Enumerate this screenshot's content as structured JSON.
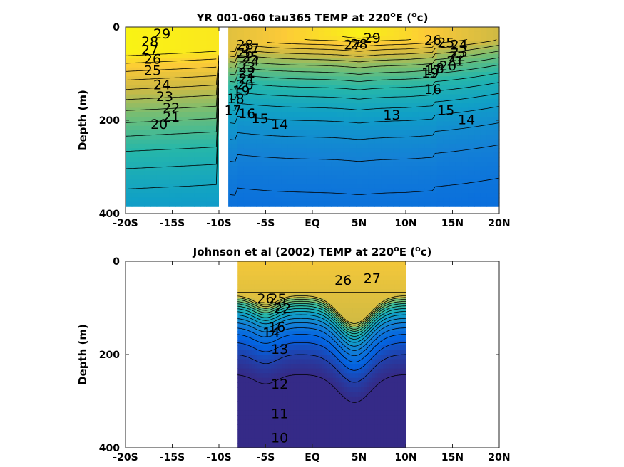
{
  "chart_data": [
    {
      "type": "contour",
      "title": "YR 001-060 tau365 TEMP at 220°E (°c)",
      "title_main": "YR 001-060 tau365 TEMP at 220",
      "title_unit_open": "E (",
      "title_unit_close": "c)",
      "title_sup": "o",
      "xlabel": "",
      "ylabel": "Depth (m)",
      "xlim": [
        -20,
        20
      ],
      "ylim": [
        400,
        0
      ],
      "x_ticks": [
        -20,
        -15,
        -10,
        -5,
        0,
        5,
        10,
        15,
        20
      ],
      "x_tick_labels": [
        "-20S",
        "-15S",
        "-10S",
        "-5S",
        "EQ",
        "5N",
        "10N",
        "15N",
        "20N"
      ],
      "y_ticks": [
        0,
        200,
        400
      ],
      "y_tick_labels": [
        "0",
        "200",
        "400"
      ],
      "data_extent": {
        "lat": [
          -20,
          20
        ],
        "depth": [
          0,
          385
        ]
      },
      "gap_lat": [
        -10,
        -9
      ],
      "colormap": "parula",
      "color_range": [
        10,
        30
      ],
      "contour_labels": [
        {
          "text": "29",
          "lat": -16.1,
          "depth": 16
        },
        {
          "text": "28",
          "lat": -17.4,
          "depth": 33
        },
        {
          "text": "27",
          "lat": -17.4,
          "depth": 50
        },
        {
          "text": "26",
          "lat": -17.1,
          "depth": 70
        },
        {
          "text": "25",
          "lat": -17.1,
          "depth": 95
        },
        {
          "text": "24",
          "lat": -16.1,
          "depth": 125
        },
        {
          "text": "23",
          "lat": -15.8,
          "depth": 150
        },
        {
          "text": "22",
          "lat": -15.1,
          "depth": 175
        },
        {
          "text": "21",
          "lat": -15.1,
          "depth": 195
        },
        {
          "text": "20",
          "lat": -16.4,
          "depth": 210
        },
        {
          "text": "28",
          "lat": -7.2,
          "depth": 40
        },
        {
          "text": "27",
          "lat": -6.6,
          "depth": 48
        },
        {
          "text": "26",
          "lat": -7.2,
          "depth": 57
        },
        {
          "text": "25",
          "lat": -6.6,
          "depth": 65
        },
        {
          "text": "24",
          "lat": -6.6,
          "depth": 75
        },
        {
          "text": "23",
          "lat": -7.0,
          "depth": 88
        },
        {
          "text": "22",
          "lat": -7.0,
          "depth": 100
        },
        {
          "text": "21",
          "lat": -7.0,
          "depth": 112
        },
        {
          "text": "20",
          "lat": -7.2,
          "depth": 125
        },
        {
          "text": "19",
          "lat": -7.6,
          "depth": 138
        },
        {
          "text": "18",
          "lat": -8.2,
          "depth": 155
        },
        {
          "text": "17",
          "lat": -8.5,
          "depth": 180
        },
        {
          "text": "16",
          "lat": -7.0,
          "depth": 187
        },
        {
          "text": "15",
          "lat": -5.6,
          "depth": 198
        },
        {
          "text": "14",
          "lat": -3.5,
          "depth": 210
        },
        {
          "text": "29",
          "lat": 6.4,
          "depth": 25
        },
        {
          "text": "28",
          "lat": 5.0,
          "depth": 38
        },
        {
          "text": "27",
          "lat": 4.3,
          "depth": 40
        },
        {
          "text": "26",
          "lat": 12.9,
          "depth": 30
        },
        {
          "text": "25",
          "lat": 14.3,
          "depth": 35
        },
        {
          "text": "24",
          "lat": 15.7,
          "depth": 40
        },
        {
          "text": "23",
          "lat": 15.7,
          "depth": 55
        },
        {
          "text": "22",
          "lat": 15.5,
          "depth": 65
        },
        {
          "text": "21",
          "lat": 15.3,
          "depth": 75
        },
        {
          "text": "20",
          "lat": 14.5,
          "depth": 85
        },
        {
          "text": "18",
          "lat": 13.2,
          "depth": 90
        },
        {
          "text": "17",
          "lat": 12.9,
          "depth": 95
        },
        {
          "text": "19",
          "lat": 12.6,
          "depth": 100
        },
        {
          "text": "16",
          "lat": 12.9,
          "depth": 135
        },
        {
          "text": "15",
          "lat": 14.3,
          "depth": 180
        },
        {
          "text": "14",
          "lat": 16.5,
          "depth": 200
        },
        {
          "text": "13",
          "lat": 8.5,
          "depth": 190
        }
      ]
    },
    {
      "type": "contour",
      "title": "Johnson et al (2002) TEMP at 220°E (°c)",
      "title_main": "Johnson et al (2002) TEMP at 220",
      "title_unit_open": "E (",
      "title_unit_close": "c)",
      "title_sup": "o",
      "xlabel": "",
      "ylabel": "Depth (m)",
      "xlim": [
        -20,
        20
      ],
      "ylim": [
        400,
        0
      ],
      "x_ticks": [
        -20,
        -15,
        -10,
        -5,
        0,
        5,
        10,
        15,
        20
      ],
      "x_tick_labels": [
        "-20S",
        "-15S",
        "-10S",
        "-5S",
        "EQ",
        "5N",
        "10N",
        "15N",
        "20N"
      ],
      "y_ticks": [
        0,
        200,
        400
      ],
      "y_tick_labels": [
        "0",
        "200",
        "400"
      ],
      "data_extent": {
        "lat": [
          -8,
          10
        ],
        "depth": [
          0,
          400
        ]
      },
      "colormap": "parula",
      "color_range": [
        10,
        30
      ],
      "contour_labels": [
        {
          "text": "26",
          "lat": 3.3,
          "depth": 42
        },
        {
          "text": "27",
          "lat": 6.4,
          "depth": 38
        },
        {
          "text": "26",
          "lat": -5.0,
          "depth": 82
        },
        {
          "text": "25",
          "lat": -3.7,
          "depth": 82
        },
        {
          "text": "22",
          "lat": -3.2,
          "depth": 102
        },
        {
          "text": "16",
          "lat": -3.8,
          "depth": 143
        },
        {
          "text": "14",
          "lat": -4.4,
          "depth": 155
        },
        {
          "text": "13",
          "lat": -3.5,
          "depth": 190
        },
        {
          "text": "12",
          "lat": -3.5,
          "depth": 265
        },
        {
          "text": "11",
          "lat": -3.5,
          "depth": 328
        },
        {
          "text": "10",
          "lat": -3.5,
          "depth": 380
        }
      ]
    }
  ]
}
